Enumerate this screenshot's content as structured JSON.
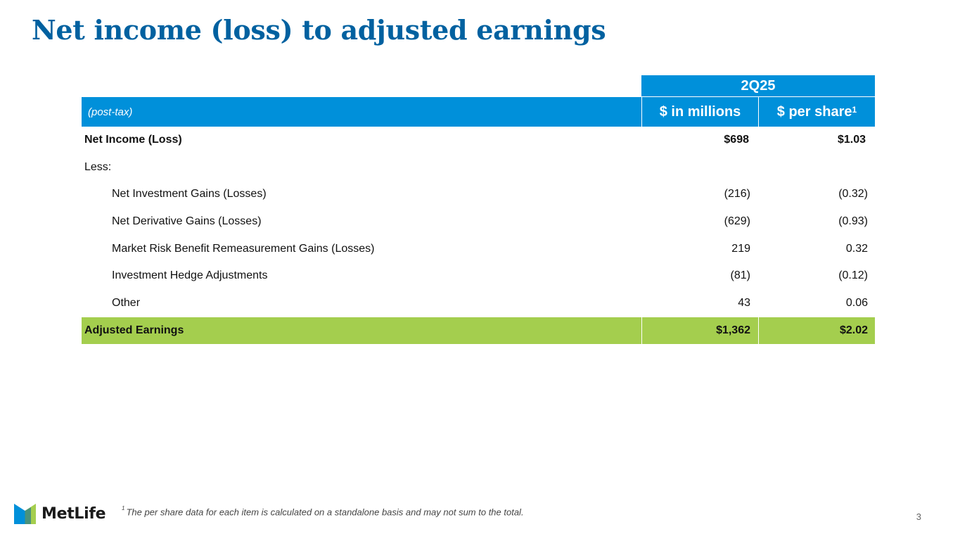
{
  "title": "Net income (loss) to adjusted earnings",
  "table": {
    "period": "2Q25",
    "basis_label": "(post-tax)",
    "col_millions": "$ in millions",
    "col_per_share": "$ per share",
    "col_per_share_footnote": "1",
    "rows": [
      {
        "label": "Net Income (Loss)",
        "millions": "$698",
        "per_share": "$1.03"
      },
      {
        "label": "Less:",
        "millions": "",
        "per_share": ""
      },
      {
        "label": "Net Investment Gains (Losses)",
        "millions": "(216)",
        "per_share": "(0.32)"
      },
      {
        "label": "Net Derivative Gains (Losses)",
        "millions": "(629)",
        "per_share": "(0.93)"
      },
      {
        "label": "Market Risk Benefit Remeasurement Gains (Losses)",
        "millions": "219",
        "per_share": "0.32"
      },
      {
        "label": "Investment Hedge Adjustments",
        "millions": "(81)",
        "per_share": "(0.12)"
      },
      {
        "label": "Other",
        "millions": "43",
        "per_share": "0.06"
      }
    ],
    "total": {
      "label": "Adjusted Earnings",
      "millions": "$1,362",
      "per_share": "$2.02"
    }
  },
  "footnote": {
    "marker": "1",
    "text": "The per share data for each item is calculated on a standalone basis and may not sum to the total."
  },
  "brand": {
    "name": "MetLife",
    "logo_icon": "metlife-logo-icon"
  },
  "page_number": "3",
  "colors": {
    "title": "#0061a0",
    "header_bg": "#0090da",
    "total_bg": "#a4ce4e",
    "logo_blue": "#0090da",
    "logo_green": "#a4ce4e"
  }
}
